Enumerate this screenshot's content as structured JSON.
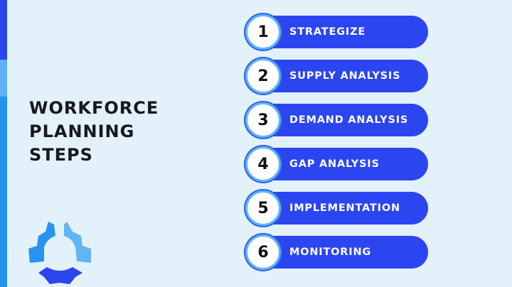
{
  "colors": {
    "stripe_top": "#2b45f0",
    "stripe_middle": "#5fb0f2",
    "stripe_bottom": "#2393f0",
    "accent": "#2b45f0",
    "background": "#e3f1fa"
  },
  "title": {
    "lines": [
      "WORKFORCE",
      "PLANNING",
      "STEPS"
    ]
  },
  "logo_icon": "three-segment-gear-logo",
  "steps": [
    {
      "number": "1",
      "label": "STRATEGIZE"
    },
    {
      "number": "2",
      "label": "SUPPLY ANALYSIS"
    },
    {
      "number": "3",
      "label": "DEMAND ANALYSIS"
    },
    {
      "number": "4",
      "label": "GAP ANALYSIS"
    },
    {
      "number": "5",
      "label": "IMPLEMENTATION"
    },
    {
      "number": "6",
      "label": "MONITORING"
    }
  ]
}
